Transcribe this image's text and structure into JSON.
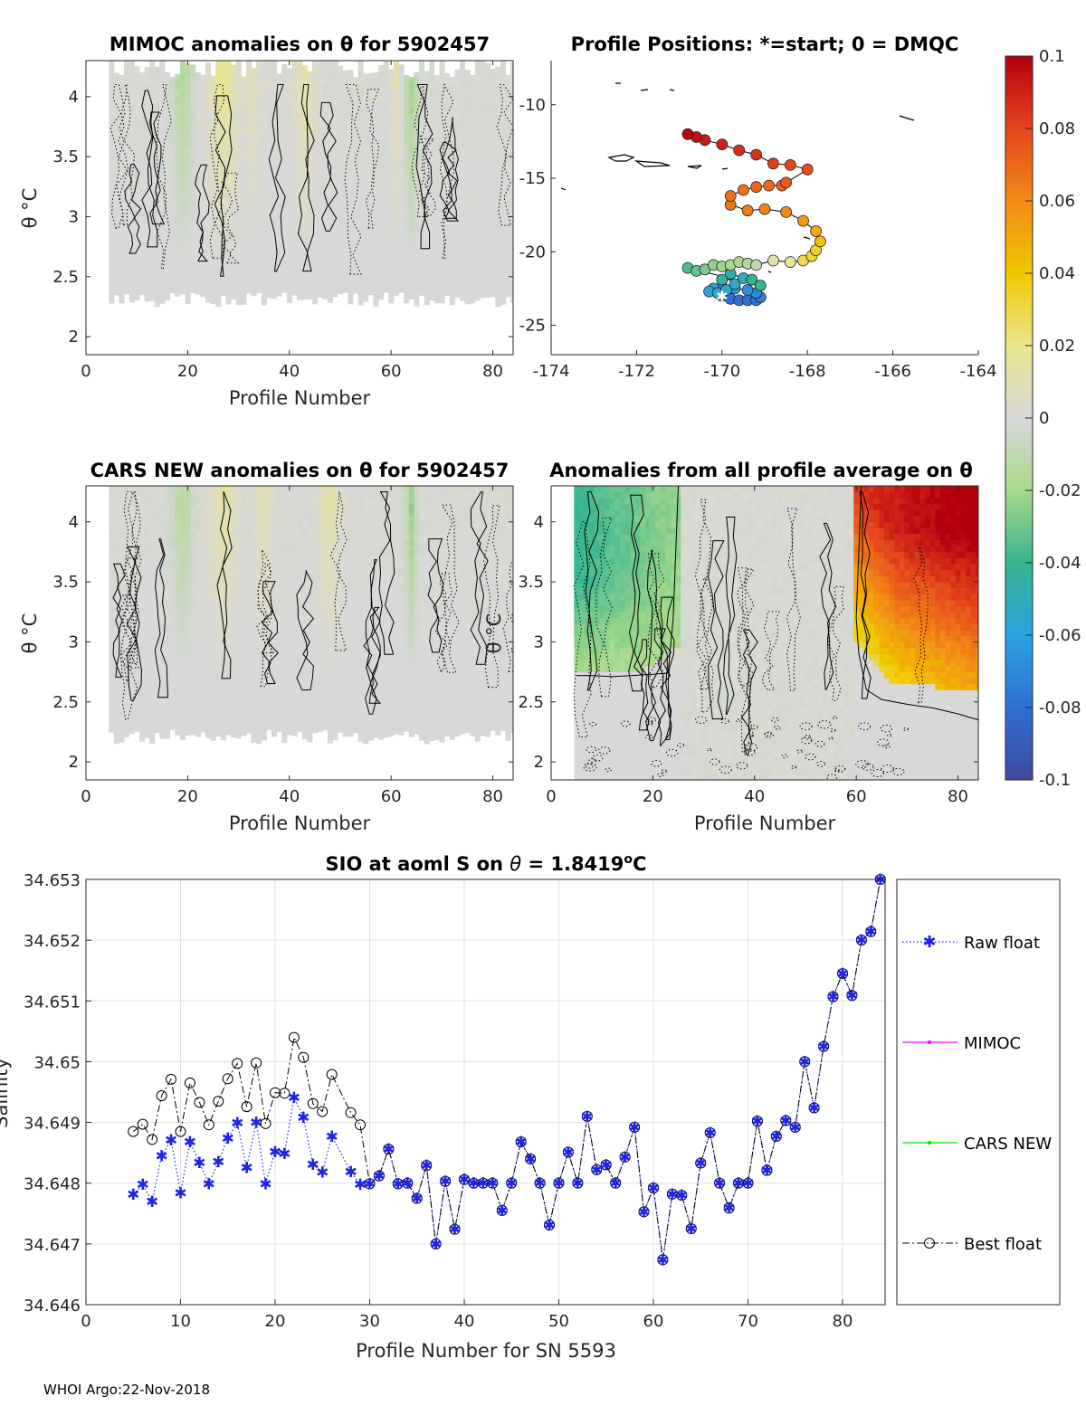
{
  "footer": "WHOI Argo:22-Nov-2018",
  "colors": {
    "raw_float": "#1f24e6",
    "best_float": "#000000",
    "mimoc": "#ff00ff",
    "cars_new": "#00dd00"
  },
  "chart_data": [
    {
      "id": "mimoc",
      "type": "heatmap",
      "title": "MIMOC anomalies on θ  for 5902457",
      "xlabel": "Profile Number",
      "ylabel": "θ °C",
      "xlim": [
        0,
        84
      ],
      "ylim": [
        1.85,
        4.3
      ],
      "xticks": [
        0,
        20,
        40,
        60,
        80
      ],
      "yticks": [
        2,
        2.5,
        3,
        3.5,
        4
      ],
      "ytick_labels": [
        "2",
        "2.5",
        "3",
        "3.5",
        "4"
      ],
      "profiles": [
        5,
        84
      ],
      "theta_range": [
        2.25,
        4.15
      ],
      "pattern": "mostly near-zero anomalies with weak negative streaks near profiles 18-20 and 64, weak positive streaks near profiles 24-30 and 42-45"
    },
    {
      "id": "positions",
      "type": "scatter",
      "title": "Profile Positions: *=start; 0 = DMQC",
      "xlim": [
        -174,
        -164
      ],
      "ylim": [
        -27,
        -7
      ],
      "xticks": [
        -174,
        -172,
        -170,
        -168,
        -166,
        -164
      ],
      "yticks": [
        -10,
        -15,
        -20,
        -25
      ],
      "points": [
        {
          "lon": -170.0,
          "lat": -23.0,
          "v": -0.085
        },
        {
          "lon": -169.8,
          "lat": -23.2,
          "v": -0.08
        },
        {
          "lon": -169.6,
          "lat": -23.3,
          "v": -0.08
        },
        {
          "lon": -169.4,
          "lat": -23.3,
          "v": -0.08
        },
        {
          "lon": -169.2,
          "lat": -23.3,
          "v": -0.078
        },
        {
          "lon": -169.1,
          "lat": -23.1,
          "v": -0.075
        },
        {
          "lon": -169.2,
          "lat": -22.8,
          "v": -0.07
        },
        {
          "lon": -169.4,
          "lat": -22.6,
          "v": -0.068
        },
        {
          "lon": -169.7,
          "lat": -22.5,
          "v": -0.066
        },
        {
          "lon": -170.0,
          "lat": -22.4,
          "v": -0.064
        },
        {
          "lon": -170.2,
          "lat": -22.5,
          "v": -0.06
        },
        {
          "lon": -170.3,
          "lat": -22.7,
          "v": -0.058
        },
        {
          "lon": -170.1,
          "lat": -22.8,
          "v": -0.056
        },
        {
          "lon": -169.9,
          "lat": -22.6,
          "v": -0.055
        },
        {
          "lon": -169.7,
          "lat": -22.2,
          "v": -0.053
        },
        {
          "lon": -169.5,
          "lat": -21.8,
          "v": -0.05
        },
        {
          "lon": -169.8,
          "lat": -21.5,
          "v": -0.048
        },
        {
          "lon": -170.0,
          "lat": -21.9,
          "v": -0.045
        },
        {
          "lon": -169.3,
          "lat": -21.9,
          "v": -0.042
        },
        {
          "lon": -169.1,
          "lat": -22.3,
          "v": -0.04
        },
        {
          "lon": -170.8,
          "lat": -21.1,
          "v": -0.036
        },
        {
          "lon": -170.6,
          "lat": -21.3,
          "v": -0.032
        },
        {
          "lon": -170.4,
          "lat": -21.2,
          "v": -0.028
        },
        {
          "lon": -170.2,
          "lat": -20.9,
          "v": -0.025
        },
        {
          "lon": -170.0,
          "lat": -21.0,
          "v": -0.022
        },
        {
          "lon": -169.8,
          "lat": -20.9,
          "v": -0.02
        },
        {
          "lon": -169.6,
          "lat": -20.7,
          "v": -0.018
        },
        {
          "lon": -169.4,
          "lat": -20.8,
          "v": -0.015
        },
        {
          "lon": -169.2,
          "lat": -20.9,
          "v": -0.012
        },
        {
          "lon": -168.8,
          "lat": -20.6,
          "v": 0.01
        },
        {
          "lon": -168.4,
          "lat": -20.7,
          "v": 0.02
        },
        {
          "lon": -168.1,
          "lat": -20.6,
          "v": 0.028
        },
        {
          "lon": -167.9,
          "lat": -20.3,
          "v": 0.032
        },
        {
          "lon": -167.8,
          "lat": -19.9,
          "v": 0.035
        },
        {
          "lon": -167.7,
          "lat": -19.3,
          "v": 0.042
        },
        {
          "lon": -167.8,
          "lat": -18.6,
          "v": 0.05
        },
        {
          "lon": -168.1,
          "lat": -17.9,
          "v": 0.055
        },
        {
          "lon": -168.5,
          "lat": -17.3,
          "v": 0.06
        },
        {
          "lon": -169.0,
          "lat": -17.1,
          "v": 0.062
        },
        {
          "lon": -169.4,
          "lat": -17.2,
          "v": 0.064
        },
        {
          "lon": -169.8,
          "lat": -16.8,
          "v": 0.066
        },
        {
          "lon": -169.8,
          "lat": -16.2,
          "v": 0.068
        },
        {
          "lon": -169.5,
          "lat": -15.8,
          "v": 0.068
        },
        {
          "lon": -169.2,
          "lat": -15.6,
          "v": 0.07
        },
        {
          "lon": -168.9,
          "lat": -15.5,
          "v": 0.07
        },
        {
          "lon": -168.6,
          "lat": -15.5,
          "v": 0.072
        },
        {
          "lon": -168.5,
          "lat": -15.3,
          "v": 0.074
        },
        {
          "lon": -168.0,
          "lat": -14.4,
          "v": 0.078
        },
        {
          "lon": -168.4,
          "lat": -14.1,
          "v": 0.08
        },
        {
          "lon": -168.8,
          "lat": -14.0,
          "v": 0.082
        },
        {
          "lon": -169.2,
          "lat": -13.4,
          "v": 0.085
        },
        {
          "lon": -169.6,
          "lat": -13.1,
          "v": 0.086
        },
        {
          "lon": -170.0,
          "lat": -12.7,
          "v": 0.09
        },
        {
          "lon": -170.4,
          "lat": -12.4,
          "v": 0.092
        },
        {
          "lon": -170.6,
          "lat": -12.2,
          "v": 0.095
        },
        {
          "lon": -170.8,
          "lat": -12.0,
          "v": 0.098
        }
      ]
    },
    {
      "id": "cars",
      "type": "heatmap",
      "title": "CARS NEW anomalies on θ for 5902457",
      "xlabel": "Profile Number",
      "ylabel": "θ °C",
      "xlim": [
        0,
        84
      ],
      "ylim": [
        1.85,
        4.3
      ],
      "xticks": [
        0,
        20,
        40,
        60,
        80
      ],
      "yticks": [
        2,
        2.5,
        3,
        3.5,
        4
      ],
      "ytick_labels": [
        "2",
        "2.5",
        "3",
        "3.5",
        "4"
      ],
      "profiles": [
        5,
        84
      ],
      "theta_range": [
        2.15,
        4.3
      ],
      "pattern": "near-zero anomalies with weak streaks similar to MIMOC"
    },
    {
      "id": "allavg",
      "type": "heatmap",
      "title": "Anomalies from all profile average on θ",
      "xlabel": "Profile Number",
      "ylabel": "θ °C",
      "xlim": [
        0,
        84
      ],
      "ylim": [
        1.85,
        4.3
      ],
      "xticks": [
        0,
        20,
        40,
        60,
        80
      ],
      "yticks": [
        2,
        2.5,
        3,
        3.5,
        4
      ],
      "ytick_labels": [
        "2",
        "2.5",
        "3",
        "3.5",
        "4"
      ],
      "profiles": [
        5,
        84
      ],
      "theta_range": [
        1.85,
        4.3
      ],
      "pattern": "negative anomalies (-0.04 to -0.02) for profiles 5-25 above 2.7°C; positive anomalies (0.04 to 0.1) for profiles 60-84 above 2.5°C; near zero elsewhere"
    },
    {
      "id": "colorbar",
      "type": "colorbar",
      "range": [
        -0.1,
        0.1
      ],
      "tick_labels": [
        "0.1",
        "0.08",
        "0.06",
        "0.04",
        "0.02",
        "0",
        "-0.02",
        "-0.04",
        "-0.06",
        "-0.08",
        "-0.1"
      ],
      "tick_values": [
        0.1,
        0.08,
        0.06,
        0.04,
        0.02,
        0,
        -0.02,
        -0.04,
        -0.06,
        -0.08,
        -0.1
      ]
    },
    {
      "id": "salinity",
      "type": "line",
      "title": "SIO at aoml S on θ = 1.8419°C",
      "title_parts": {
        "prefix": "SIO at aoml S on ",
        "theta": "θ",
        "eq": " = 1.8419",
        "degree": "o",
        "unit": "C"
      },
      "xlabel": "Profile Number for SN 5593",
      "ylabel": "Salinity",
      "xlim": [
        0,
        84.5
      ],
      "ylim": [
        34.646,
        34.653
      ],
      "xticks": [
        0,
        10,
        20,
        30,
        40,
        50,
        60,
        70,
        80
      ],
      "yticks": [
        34.646,
        34.647,
        34.648,
        34.649,
        34.65,
        34.651,
        34.652,
        34.653
      ],
      "ytick_labels": [
        "34.646",
        "34.647",
        "34.648",
        "34.649",
        "34.65",
        "34.651",
        "34.652",
        "34.653"
      ],
      "grid": true,
      "legend": [
        {
          "name": "Raw float",
          "style": "dotted-star",
          "color": "#1f24e6"
        },
        {
          "name": "MIMOC",
          "style": "solid-dot",
          "color": "#ff00ff"
        },
        {
          "name": "CARS NEW",
          "style": "solid-dot",
          "color": "#00dd00"
        },
        {
          "name": "Best float",
          "style": "dashdot-circle",
          "color": "#000000"
        }
      ],
      "x": [
        5,
        6,
        7,
        8,
        9,
        10,
        11,
        12,
        13,
        14,
        15,
        16,
        17,
        18,
        19,
        20,
        21,
        22,
        23,
        24,
        25,
        26,
        28,
        29,
        30,
        31,
        32,
        33,
        34,
        35,
        36,
        37,
        38,
        39,
        40,
        41,
        42,
        43,
        44,
        45,
        46,
        47,
        48,
        49,
        50,
        51,
        52,
        53,
        54,
        55,
        56,
        57,
        58,
        59,
        60,
        61,
        62,
        63,
        64,
        65,
        66,
        67,
        68,
        69,
        70,
        71,
        72,
        73,
        74,
        75,
        76,
        77,
        78,
        79,
        80,
        81,
        82,
        83,
        84
      ],
      "series": [
        {
          "name": "Raw float",
          "values": [
            34.64782,
            34.64798,
            34.6477,
            34.64845,
            34.64871,
            34.64784,
            34.64868,
            34.64834,
            34.64799,
            34.64835,
            34.64874,
            34.64899,
            34.64826,
            34.649,
            34.64799,
            34.64852,
            34.64849,
            34.64941,
            34.64908,
            34.64831,
            34.64818,
            34.64877,
            34.64819,
            34.64798,
            34.64799,
            34.64812,
            34.64856,
            34.64799,
            34.648,
            34.64775,
            34.64829,
            34.647,
            34.64803,
            34.64724,
            34.64806,
            34.648,
            34.648,
            34.648,
            34.64755,
            34.648,
            34.64868,
            34.6484,
            34.648,
            34.64731,
            34.648,
            34.64851,
            34.648,
            34.6491,
            34.64822,
            34.6483,
            34.648,
            34.64843,
            34.64892,
            34.64753,
            34.64792,
            34.64674,
            34.64782,
            34.6478,
            34.64725,
            34.64833,
            34.64883,
            34.648,
            34.64759,
            34.648,
            34.648,
            34.64902,
            34.64821,
            34.64877,
            34.64903,
            34.64892,
            34.65,
            34.64924,
            34.65025,
            34.65107,
            34.65145,
            34.65109,
            34.652,
            34.65214,
            34.653
          ]
        },
        {
          "name": "Best float",
          "values": [
            34.64885,
            34.64897,
            34.64872,
            34.64944,
            34.64971,
            34.64885,
            34.64965,
            34.64933,
            34.64896,
            34.64935,
            34.64972,
            34.64997,
            34.64926,
            34.64998,
            34.64898,
            34.64949,
            34.64948,
            34.6504,
            34.65007,
            34.64931,
            34.64918,
            34.64979,
            34.64916,
            34.64896,
            34.64799,
            34.64812,
            34.64856,
            34.64799,
            34.648,
            34.64775,
            34.64829,
            34.647,
            34.64803,
            34.64724,
            34.64806,
            34.648,
            34.648,
            34.648,
            34.64755,
            34.648,
            34.64868,
            34.6484,
            34.648,
            34.64731,
            34.648,
            34.64851,
            34.648,
            34.6491,
            34.64822,
            34.6483,
            34.648,
            34.64843,
            34.64892,
            34.64753,
            34.64792,
            34.64674,
            34.64782,
            34.6478,
            34.64725,
            34.64833,
            34.64883,
            34.648,
            34.64759,
            34.648,
            34.648,
            34.64902,
            34.64821,
            34.64877,
            34.64903,
            34.64892,
            34.65,
            34.64924,
            34.65025,
            34.65107,
            34.65145,
            34.65109,
            34.652,
            34.65214,
            34.653
          ]
        }
      ]
    }
  ]
}
